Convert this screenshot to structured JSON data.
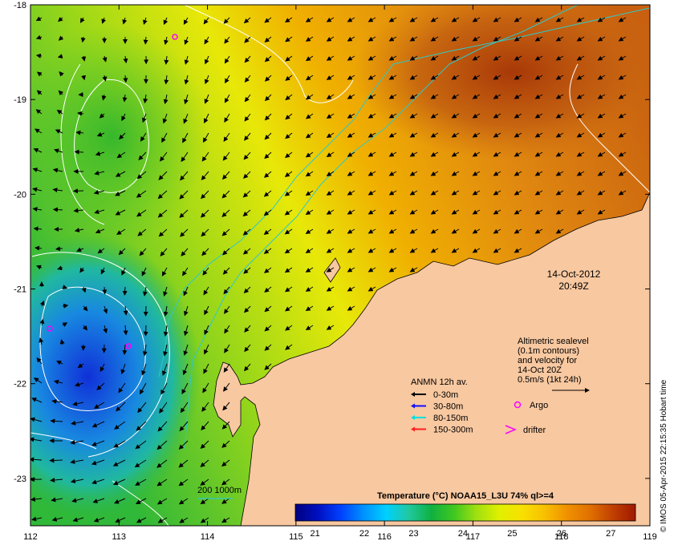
{
  "axes": {
    "lon_ticks": [
      "112",
      "113",
      "114",
      "115",
      "116",
      "117",
      "118",
      "119"
    ],
    "lat_ticks": [
      "-18",
      "-19",
      "-20",
      "-21",
      "-22",
      "-23"
    ],
    "lon_range": [
      112,
      119
    ],
    "lat_range": [
      -18,
      -23.5
    ]
  },
  "timestamp": {
    "date": "14-Oct-2012",
    "time": "20:49Z"
  },
  "altimetry_note": [
    "Altimetric sealevel",
    "(0.1m contours)",
    "and velocity for",
    "14-Oct 20Z",
    "0.5m/s (1kt 24h)"
  ],
  "legend": {
    "title": "ANMN 12h av.",
    "items": [
      {
        "label": "0-30m",
        "color": "#000000"
      },
      {
        "label": "30-80m",
        "color": "#1010ff"
      },
      {
        "label": "80-150m",
        "color": "#00e0e0"
      },
      {
        "label": "150-300m",
        "color": "#ff2020"
      }
    ],
    "argo": {
      "label": "Argo",
      "color": "#ff00ff"
    },
    "drifter": {
      "label": "drifter",
      "color": "#ff00ff"
    }
  },
  "isobaths": {
    "label": "200  1000m",
    "color": "#30c8c8"
  },
  "colorbar": {
    "title": "Temperature (°C) NOAA15_L3U 74% ql>=4",
    "ticks": [
      "21",
      "22",
      "23",
      "24",
      "25",
      "26",
      "27"
    ],
    "range": [
      20.6,
      27.5
    ],
    "colors": [
      "#00007f",
      "#0010c0",
      "#0040ff",
      "#0090ff",
      "#00d0ff",
      "#20c8a0",
      "#10b040",
      "#40c820",
      "#a0e010",
      "#e0f000",
      "#f8e000",
      "#f8c000",
      "#f09000",
      "#e07000",
      "#c04000",
      "#a01800"
    ]
  },
  "credit": "© IMOS 05-Apr-2015 22:15:35 Hobart time",
  "colors": {
    "land": "#f8c8a0",
    "sea_warm": "#e88a10",
    "sea_mid": "#d8e010",
    "sea_cool": "#30c030",
    "sea_cold": "#1050e0"
  }
}
